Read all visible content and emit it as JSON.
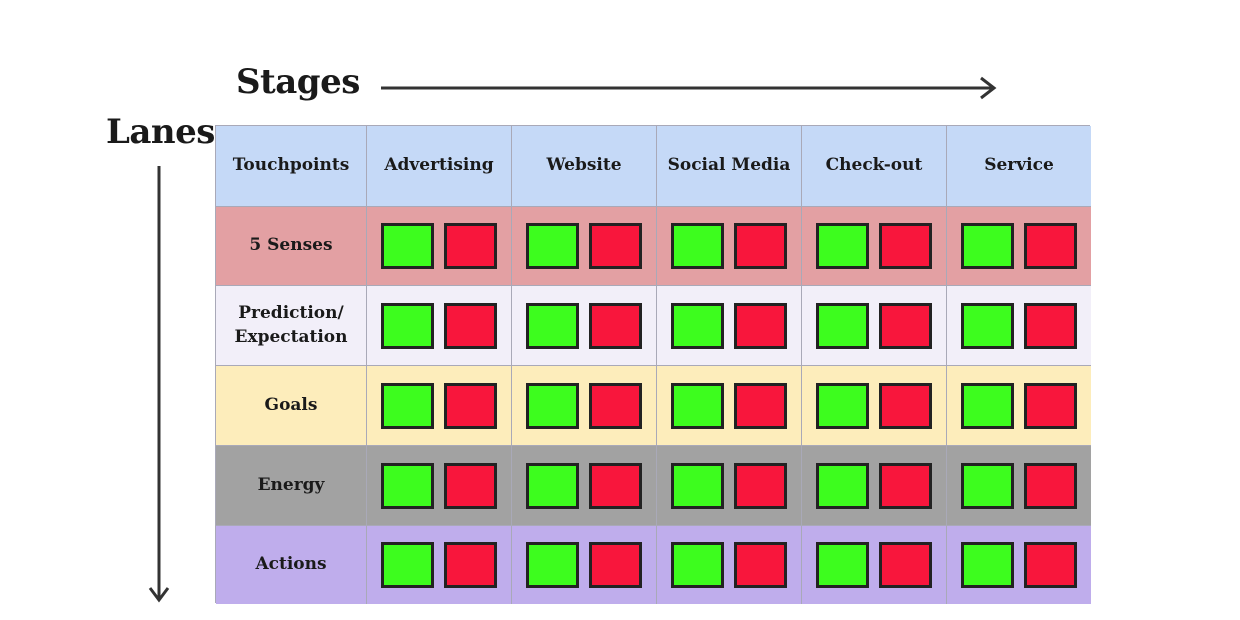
{
  "labels": {
    "stages": "Stages",
    "lanes": "Lanes"
  },
  "colors": {
    "header_row": "#c5d9f7",
    "positive_box": "#3dfd1e",
    "negative_box": "#f8163c"
  },
  "stages": [
    "Touchpoints",
    "Advertising",
    "Website",
    "Social Media",
    "Check-out",
    "Service"
  ],
  "lanes": [
    {
      "label": "5 Senses",
      "color": "#e3a0a3"
    },
    {
      "label": "Prediction/\nExpectation",
      "color": "#f2eff9"
    },
    {
      "label": "Goals",
      "color": "#fdedbb"
    },
    {
      "label": "Energy",
      "color": "#a2a2a2"
    },
    {
      "label": "Actions",
      "color": "#bfadec"
    }
  ]
}
